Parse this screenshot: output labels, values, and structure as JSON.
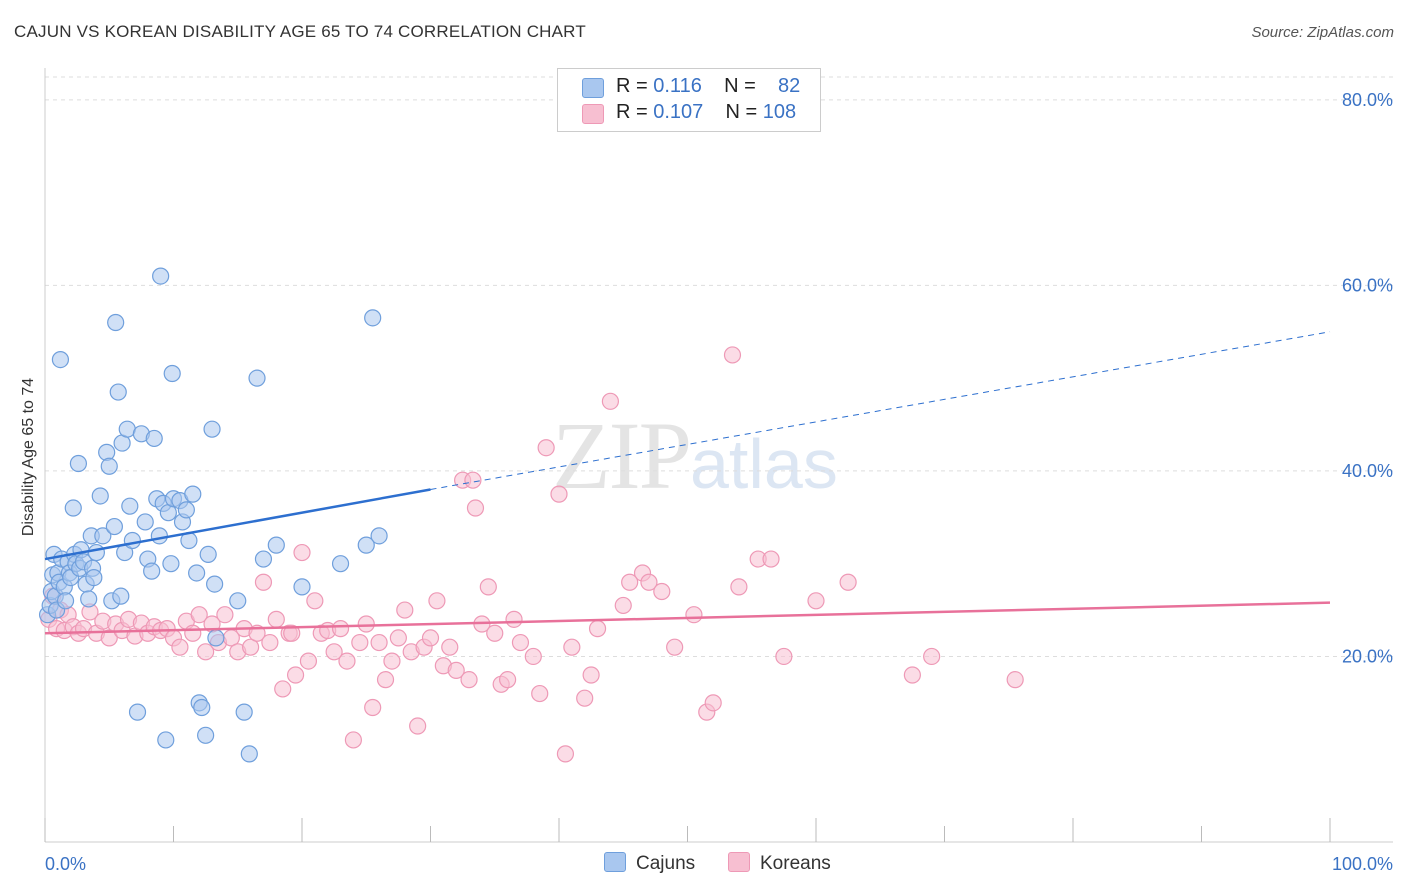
{
  "header": {
    "title": "CAJUN VS KOREAN DISABILITY AGE 65 TO 74 CORRELATION CHART",
    "source": "Source: ZipAtlas.com"
  },
  "legend": {
    "rows": [
      {
        "r_label": "R = ",
        "r_value": "0.116",
        "n_label": "N = ",
        "n_value": "82"
      },
      {
        "r_label": "R = ",
        "r_value": "0.107",
        "n_label": "N = ",
        "n_value": "108"
      }
    ]
  },
  "watermark": {
    "zip": "ZIP",
    "atlas": "atlas"
  },
  "colors": {
    "cajuns_fill": "#a9c7ef",
    "cajuns_stroke": "#6f9fdc",
    "cajuns_line": "#2d6fcf",
    "koreans_fill": "#f7bfd1",
    "koreans_stroke": "#ee99b6",
    "koreans_line": "#e8719a",
    "tick_text": "#3a72c4",
    "grid": "#dddddd"
  },
  "chart_data": {
    "type": "scatter",
    "title": "CAJUN VS KOREAN DISABILITY AGE 65 TO 74 CORRELATION CHART",
    "xlabel": "",
    "ylabel": "Disability Age 65 to 74",
    "xlim": [
      0,
      100
    ],
    "ylim": [
      0,
      83
    ],
    "x_tick_labels": [
      "0.0%",
      "100.0%"
    ],
    "y_ticks": [
      20,
      40,
      60,
      80
    ],
    "y_tick_labels": [
      "20.0%",
      "40.0%",
      "60.0%",
      "80.0%"
    ],
    "grid": true,
    "legend_position": "top-center",
    "series": [
      {
        "name": "Cajuns",
        "r": 0.116,
        "n": 82,
        "trend": {
          "x0": 0,
          "y0": 30.5,
          "x1": 30,
          "y1": 38.0,
          "dashed_to_x": 100,
          "dashed_to_y": 55.0
        },
        "points": [
          [
            0.2,
            24.5
          ],
          [
            0.4,
            25.5
          ],
          [
            0.5,
            27.0
          ],
          [
            0.6,
            28.8
          ],
          [
            0.7,
            31.0
          ],
          [
            0.8,
            26.5
          ],
          [
            0.9,
            25.0
          ],
          [
            1.0,
            29.0
          ],
          [
            1.1,
            28.0
          ],
          [
            1.3,
            30.5
          ],
          [
            1.5,
            27.5
          ],
          [
            1.6,
            26.0
          ],
          [
            1.8,
            30.2
          ],
          [
            1.9,
            29.0
          ],
          [
            2.0,
            28.5
          ],
          [
            2.2,
            36.0
          ],
          [
            2.3,
            31.0
          ],
          [
            2.4,
            30.0
          ],
          [
            2.6,
            40.8
          ],
          [
            2.7,
            29.5
          ],
          [
            2.8,
            31.5
          ],
          [
            3.0,
            30.2
          ],
          [
            3.2,
            27.8
          ],
          [
            3.4,
            26.2
          ],
          [
            3.6,
            33.0
          ],
          [
            3.7,
            29.5
          ],
          [
            3.8,
            28.5
          ],
          [
            4.0,
            31.2
          ],
          [
            4.3,
            37.3
          ],
          [
            4.5,
            33.0
          ],
          [
            4.8,
            42.0
          ],
          [
            5.0,
            40.5
          ],
          [
            5.2,
            26.0
          ],
          [
            5.4,
            34.0
          ],
          [
            5.5,
            56.0
          ],
          [
            5.7,
            48.5
          ],
          [
            5.9,
            26.5
          ],
          [
            6.0,
            43.0
          ],
          [
            6.2,
            31.2
          ],
          [
            6.4,
            44.5
          ],
          [
            6.6,
            36.2
          ],
          [
            6.8,
            32.5
          ],
          [
            7.2,
            14.0
          ],
          [
            7.5,
            44.0
          ],
          [
            7.8,
            34.5
          ],
          [
            8.0,
            30.5
          ],
          [
            8.3,
            29.2
          ],
          [
            8.5,
            43.5
          ],
          [
            8.7,
            37.0
          ],
          [
            8.9,
            33.0
          ],
          [
            9.0,
            61.0
          ],
          [
            9.2,
            36.5
          ],
          [
            9.4,
            11.0
          ],
          [
            9.6,
            35.5
          ],
          [
            9.8,
            30.0
          ],
          [
            10.0,
            37.0
          ],
          [
            10.5,
            36.8
          ],
          [
            10.7,
            34.5
          ],
          [
            11.0,
            35.8
          ],
          [
            9.9,
            50.5
          ],
          [
            11.2,
            32.5
          ],
          [
            11.5,
            37.5
          ],
          [
            11.8,
            29.0
          ],
          [
            12.0,
            15.0
          ],
          [
            12.2,
            14.5
          ],
          [
            12.5,
            11.5
          ],
          [
            12.7,
            31.0
          ],
          [
            13.0,
            44.5
          ],
          [
            13.2,
            27.8
          ],
          [
            13.3,
            22.0
          ],
          [
            15.0,
            26.0
          ],
          [
            15.5,
            14.0
          ],
          [
            15.9,
            9.5
          ],
          [
            16.5,
            50.0
          ],
          [
            17.0,
            30.5
          ],
          [
            18.0,
            32.0
          ],
          [
            20.0,
            27.5
          ],
          [
            23.0,
            30.0
          ],
          [
            25.0,
            32.0
          ],
          [
            25.5,
            56.5
          ],
          [
            26.0,
            33.0
          ],
          [
            1.2,
            52.0
          ]
        ]
      },
      {
        "name": "Koreans",
        "r": 0.107,
        "n": 108,
        "trend": {
          "x0": 0,
          "y0": 22.5,
          "x1": 100,
          "y1": 25.8
        },
        "points": [
          [
            0.3,
            24.0
          ],
          [
            0.6,
            26.5
          ],
          [
            0.9,
            23.0
          ],
          [
            1.2,
            25.0
          ],
          [
            1.5,
            22.8
          ],
          [
            1.8,
            24.5
          ],
          [
            2.2,
            23.2
          ],
          [
            2.6,
            22.5
          ],
          [
            3.0,
            23.0
          ],
          [
            3.5,
            24.8
          ],
          [
            4.0,
            22.5
          ],
          [
            4.5,
            23.8
          ],
          [
            5.0,
            22.0
          ],
          [
            5.5,
            23.5
          ],
          [
            6.0,
            22.8
          ],
          [
            6.5,
            24.0
          ],
          [
            7.0,
            22.2
          ],
          [
            7.5,
            23.6
          ],
          [
            8.0,
            22.5
          ],
          [
            8.5,
            23.2
          ],
          [
            9.0,
            22.8
          ],
          [
            9.5,
            23.0
          ],
          [
            10.0,
            22.0
          ],
          [
            10.5,
            21.0
          ],
          [
            11.0,
            23.8
          ],
          [
            11.5,
            22.5
          ],
          [
            12.0,
            24.5
          ],
          [
            12.5,
            20.5
          ],
          [
            13.0,
            23.5
          ],
          [
            13.5,
            21.5
          ],
          [
            14.0,
            24.5
          ],
          [
            14.5,
            22.0
          ],
          [
            15.0,
            20.5
          ],
          [
            15.5,
            23.0
          ],
          [
            16.0,
            21.0
          ],
          [
            16.5,
            22.5
          ],
          [
            17.0,
            28.0
          ],
          [
            17.5,
            21.5
          ],
          [
            18.0,
            24.0
          ],
          [
            18.5,
            16.5
          ],
          [
            19.0,
            22.5
          ],
          [
            19.5,
            18.0
          ],
          [
            20.0,
            31.2
          ],
          [
            20.5,
            19.5
          ],
          [
            21.0,
            26.0
          ],
          [
            21.5,
            22.5
          ],
          [
            22.0,
            22.8
          ],
          [
            22.5,
            20.5
          ],
          [
            23.0,
            23.0
          ],
          [
            23.5,
            19.5
          ],
          [
            24.0,
            11.0
          ],
          [
            24.5,
            21.5
          ],
          [
            25.0,
            23.5
          ],
          [
            25.5,
            14.5
          ],
          [
            26.0,
            21.5
          ],
          [
            26.5,
            17.5
          ],
          [
            27.0,
            19.5
          ],
          [
            27.5,
            22.0
          ],
          [
            28.0,
            25.0
          ],
          [
            28.5,
            20.5
          ],
          [
            29.0,
            12.5
          ],
          [
            29.5,
            21.0
          ],
          [
            30.0,
            22.0
          ],
          [
            30.5,
            26.0
          ],
          [
            31.0,
            19.0
          ],
          [
            31.5,
            21.0
          ],
          [
            32.0,
            18.5
          ],
          [
            32.5,
            39.0
          ],
          [
            33.0,
            17.5
          ],
          [
            33.5,
            36.0
          ],
          [
            34.0,
            23.5
          ],
          [
            34.5,
            27.5
          ],
          [
            35.0,
            22.5
          ],
          [
            35.5,
            17.0
          ],
          [
            36.0,
            17.5
          ],
          [
            36.5,
            24.0
          ],
          [
            37.0,
            21.5
          ],
          [
            38.0,
            20.0
          ],
          [
            38.5,
            16.0
          ],
          [
            39.0,
            42.5
          ],
          [
            40.0,
            37.5
          ],
          [
            40.5,
            9.5
          ],
          [
            41.0,
            21.0
          ],
          [
            42.0,
            15.5
          ],
          [
            42.5,
            18.0
          ],
          [
            43.0,
            23.0
          ],
          [
            44.0,
            47.5
          ],
          [
            45.0,
            25.5
          ],
          [
            46.5,
            29.0
          ],
          [
            47.0,
            28.0
          ],
          [
            48.0,
            27.0
          ],
          [
            49.0,
            21.0
          ],
          [
            50.5,
            24.5
          ],
          [
            51.5,
            14.0
          ],
          [
            52.0,
            15.0
          ],
          [
            53.5,
            52.5
          ],
          [
            54.0,
            27.5
          ],
          [
            55.5,
            30.5
          ],
          [
            56.5,
            30.5
          ],
          [
            57.5,
            20.0
          ],
          [
            60.0,
            26.0
          ],
          [
            62.5,
            28.0
          ],
          [
            67.5,
            18.0
          ],
          [
            69.0,
            20.0
          ],
          [
            75.5,
            17.5
          ],
          [
            33.3,
            39.0
          ],
          [
            19.2,
            22.5
          ],
          [
            45.5,
            28.0
          ]
        ]
      }
    ]
  },
  "bottom_legend": {
    "cajuns": "Cajuns",
    "koreans": "Koreans"
  },
  "x_axis": {
    "min_label": "0.0%",
    "max_label": "100.0%"
  }
}
